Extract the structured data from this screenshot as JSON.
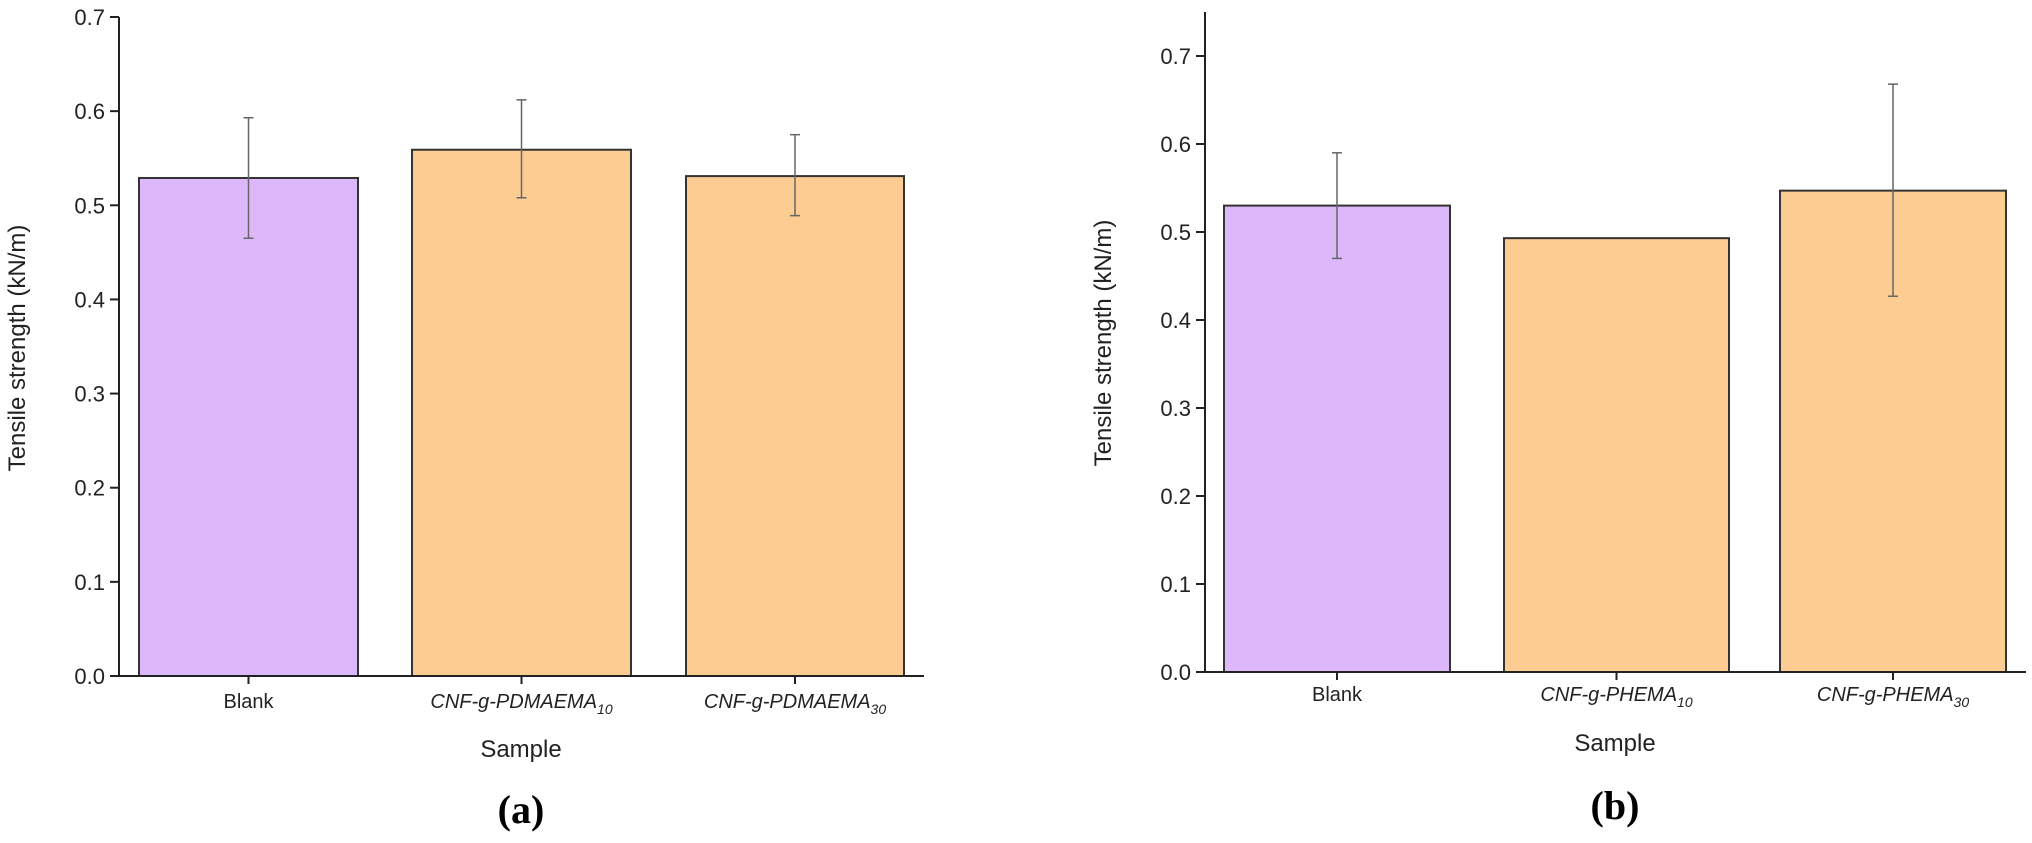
{
  "chart_data": [
    {
      "type": "bar",
      "panel_label": "(a)",
      "xlabel": "Sample",
      "ylabel": "Tensile strength (kN/m)",
      "ylim": [
        0,
        0.7
      ],
      "yticks": [
        0.0,
        0.1,
        0.2,
        0.3,
        0.4,
        0.5,
        0.6,
        0.7
      ],
      "ytick_labels": [
        "0.0",
        "0.1",
        "0.2",
        "0.3",
        "0.4",
        "0.5",
        "0.6",
        "0.7"
      ],
      "categories": [
        {
          "main": "Blank",
          "sub": "",
          "italic": false
        },
        {
          "main": "CNF-g-PDMAEMA",
          "sub": "10",
          "italic": true
        },
        {
          "main": "CNF-g-PDMAEMA",
          "sub": "30",
          "italic": true
        }
      ],
      "values": [
        0.529,
        0.559,
        0.531
      ],
      "error_low": [
        0.465,
        0.508,
        0.489
      ],
      "error_high": [
        0.593,
        0.612,
        0.575
      ],
      "bar_colors": [
        "#dcb8fb",
        "#fdcc93",
        "#fdcc93"
      ],
      "grid": false
    },
    {
      "type": "bar",
      "panel_label": "(b)",
      "xlabel": "Sample",
      "ylabel": "Tensile strength (kN/m)",
      "ylim": [
        0,
        0.75
      ],
      "yticks": [
        0.0,
        0.1,
        0.2,
        0.3,
        0.4,
        0.5,
        0.6,
        0.7
      ],
      "ytick_labels": [
        "0.0",
        "0.1",
        "0.2",
        "0.3",
        "0.4",
        "0.5",
        "0.6",
        "0.7"
      ],
      "categories": [
        {
          "main": "Blank",
          "sub": "",
          "italic": false
        },
        {
          "main": "CNF-g-PHEMA",
          "sub": "10",
          "italic": true
        },
        {
          "main": "CNF-g-PHEMA",
          "sub": "30",
          "italic": true
        }
      ],
      "values": [
        0.53,
        0.493,
        0.547
      ],
      "error_low": [
        0.47,
        null,
        0.427
      ],
      "error_high": [
        0.59,
        null,
        0.668
      ],
      "bar_colors": [
        "#dcb8fb",
        "#fdcc93",
        "#fdcc93"
      ],
      "grid": false
    }
  ]
}
